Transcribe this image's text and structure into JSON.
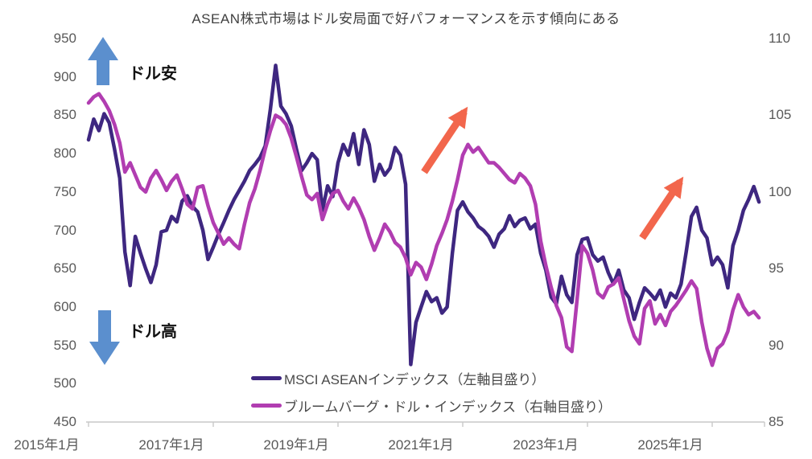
{
  "title": "ASEAN株式市場はドル安局面で好パフォーマンスを示す傾向にある",
  "annotations": {
    "dollar_weak": "ドル安",
    "dollar_strong": "ドル高"
  },
  "legend": {
    "items": [
      {
        "label": "MSCI ASEANインデックス（左軸目盛り）",
        "color": "#3E2780"
      },
      {
        "label": "ブルームバーグ・ドル・インデックス（右軸目盛り）",
        "color": "#B13DB1"
      }
    ]
  },
  "colors": {
    "msci_line": "#3E2780",
    "dollar_line": "#B13DB1",
    "blue_arrow": "#5B8FCE",
    "orange_arrow": "#F2664C",
    "axis_text": "#595959",
    "axis_line": "#C9C9C9",
    "title_text": "#404040"
  },
  "chart_data": {
    "type": "line",
    "title": "ASEAN株式市場はドル安局面で好パフォーマンスを示す傾向にある",
    "x_unit": "month",
    "x_start": "2015-01",
    "x_step_months": 1,
    "n_points": 130,
    "x_tick_labels": [
      "2015年1月",
      "2017年1月",
      "2019年1月",
      "2021年1月",
      "2023年1月",
      "2025年1月"
    ],
    "x_tick_month_indices": [
      0,
      24,
      48,
      72,
      96,
      120
    ],
    "left_axis": {
      "range": [
        450,
        950
      ],
      "ticks": [
        950,
        900,
        850,
        800,
        750,
        700,
        650,
        600,
        550,
        500,
        450
      ]
    },
    "right_axis": {
      "range": [
        85,
        110
      ],
      "ticks": [
        110,
        105,
        100,
        95,
        90,
        85
      ]
    },
    "grid": false,
    "legend_position": "bottom",
    "series": [
      {
        "name": "MSCI ASEANインデックス（左軸目盛り）",
        "axis": "left",
        "color": "#3E2780",
        "values": [
          818,
          845,
          830,
          852,
          840,
          806,
          768,
          672,
          628,
          692,
          670,
          650,
          632,
          655,
          698,
          700,
          718,
          711,
          738,
          745,
          731,
          724,
          700,
          662,
          678,
          695,
          710,
          726,
          740,
          752,
          764,
          778,
          786,
          795,
          810,
          858,
          915,
          862,
          852,
          836,
          806,
          778,
          788,
          800,
          792,
          726,
          758,
          744,
          788,
          812,
          798,
          826,
          786,
          831,
          812,
          764,
          786,
          772,
          781,
          808,
          798,
          760,
          525,
          580,
          600,
          620,
          607,
          612,
          592,
          600,
          670,
          726,
          737,
          724,
          716,
          705,
          700,
          692,
          678,
          695,
          702,
          719,
          705,
          713,
          716,
          702,
          708,
          670,
          648,
          613,
          604,
          640,
          616,
          606,
          668,
          688,
          690,
          668,
          660,
          665,
          645,
          630,
          648,
          622,
          612,
          584,
          606,
          625,
          618,
          610,
          622,
          600,
          618,
          612,
          630,
          672,
          718,
          730,
          700,
          690,
          655,
          665,
          655,
          625,
          680,
          700,
          726,
          740,
          757,
          737
        ]
      },
      {
        "name": "ブルームバーグ・ドル・インデックス（右軸目盛り）",
        "axis": "right",
        "color": "#B13DB1",
        "values": [
          105.8,
          106.2,
          106.4,
          105.9,
          105.3,
          104.4,
          103.2,
          101.3,
          101.9,
          101.1,
          100.3,
          100.0,
          100.9,
          101.4,
          100.8,
          100.1,
          100.7,
          101.1,
          100.2,
          99.2,
          98.9,
          100.3,
          100.4,
          99.1,
          98.0,
          97.3,
          96.6,
          97.0,
          96.6,
          96.3,
          97.9,
          99.3,
          100.2,
          101.4,
          102.8,
          104.0,
          105.0,
          104.8,
          104.4,
          103.5,
          102.3,
          101.0,
          99.8,
          99.5,
          99.9,
          98.2,
          99.2,
          99.9,
          100.1,
          99.4,
          98.9,
          99.6,
          99.0,
          98.2,
          97.1,
          96.2,
          97.0,
          97.9,
          97.4,
          96.7,
          96.4,
          95.7,
          94.6,
          95.4,
          95.1,
          94.3,
          95.3,
          96.5,
          97.3,
          98.2,
          99.4,
          100.8,
          102.4,
          103.1,
          102.6,
          102.9,
          102.4,
          101.9,
          101.9,
          101.6,
          101.2,
          100.8,
          100.6,
          101.2,
          100.9,
          100.4,
          99.2,
          96.8,
          95.2,
          93.8,
          92.6,
          91.8,
          89.9,
          89.6,
          93.0,
          96.5,
          96.0,
          94.9,
          93.4,
          93.1,
          93.8,
          94.0,
          94.4,
          93.0,
          91.6,
          90.6,
          90.1,
          92.4,
          92.9,
          91.4,
          92.0,
          91.3,
          92.2,
          92.6,
          93.1,
          93.6,
          94.2,
          93.7,
          91.5,
          89.8,
          88.7,
          89.8,
          90.1,
          90.9,
          92.3,
          93.3,
          92.5,
          92.0,
          92.2,
          91.8
        ]
      }
    ],
    "drawn_annotations": [
      {
        "type": "block-arrow-up",
        "label": "ドル安",
        "color": "#5B8FCE"
      },
      {
        "type": "block-arrow-down",
        "label": "ドル高",
        "color": "#5B8FCE"
      },
      {
        "type": "trend-arrow",
        "note": "2020-2021 rise",
        "color": "#F2664C"
      },
      {
        "type": "trend-arrow",
        "note": "2024-2025 rise",
        "color": "#F2664C"
      }
    ]
  }
}
